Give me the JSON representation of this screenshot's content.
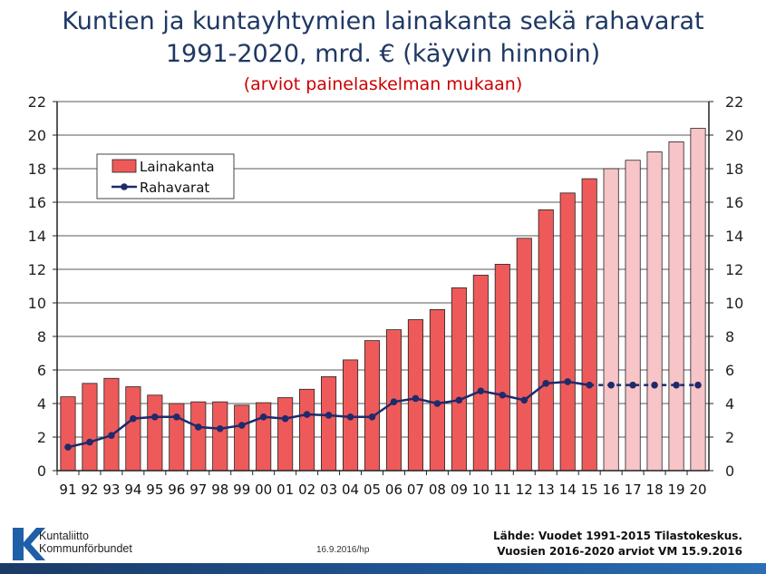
{
  "title_line1": "Kuntien ja kuntayhtymien lainakanta sekä rahavarat",
  "title_line2": "1991-2020, mrd. € (käyvin hinnoin)",
  "subtitle": "(arviot painelaskelman mukaan)",
  "chart_data": {
    "type": "bar",
    "categories": [
      "91",
      "92",
      "93",
      "94",
      "95",
      "96",
      "97",
      "98",
      "99",
      "00",
      "01",
      "02",
      "03",
      "04",
      "05",
      "06",
      "07",
      "08",
      "09",
      "10",
      "11",
      "12",
      "13",
      "14",
      "15",
      "16",
      "17",
      "18",
      "19",
      "20"
    ],
    "series": [
      {
        "name": "Lainakanta",
        "kind": "bar",
        "color": "#ee5a5a",
        "forecast_color": "#f7c4c7",
        "values": [
          4.4,
          5.2,
          5.5,
          5.0,
          4.5,
          4.0,
          4.1,
          4.1,
          3.9,
          4.05,
          4.35,
          4.85,
          5.6,
          6.6,
          7.75,
          8.4,
          9.0,
          9.6,
          10.9,
          11.65,
          12.3,
          13.85,
          15.55,
          16.55,
          17.4,
          18.0,
          18.5,
          19.0,
          19.6,
          20.4
        ]
      },
      {
        "name": "Rahavarat",
        "kind": "line",
        "color": "#1f2a6b",
        "values": [
          1.4,
          1.7,
          2.1,
          3.1,
          3.2,
          3.2,
          2.6,
          2.5,
          2.7,
          3.2,
          3.1,
          3.35,
          3.3,
          3.2,
          3.2,
          4.1,
          4.3,
          4.0,
          4.2,
          4.75,
          4.5,
          4.2,
          5.2,
          5.3,
          5.1,
          5.1,
          5.1,
          5.1,
          5.1,
          5.1
        ]
      }
    ],
    "forecast_from_index": 25,
    "ylim": [
      0,
      22
    ],
    "yticks": [
      0,
      2,
      4,
      6,
      8,
      10,
      12,
      14,
      16,
      18,
      20,
      22
    ],
    "secondary_axis": true,
    "grid": true,
    "legend_position": "top-left"
  },
  "footer": {
    "logo_line1": "Kuntaliitto",
    "logo_line2": "Kommunförbundet",
    "date_note": "16.9.2016/hp",
    "source_line1": "Lähde: Vuodet 1991-2015 Tilastokeskus.",
    "source_line2": "Vuosien 2016-2020 arviot VM 15.9.2016"
  },
  "colors": {
    "title": "#1f3864",
    "subtitle": "#cc0000",
    "plot_bg": "#ffffff"
  }
}
